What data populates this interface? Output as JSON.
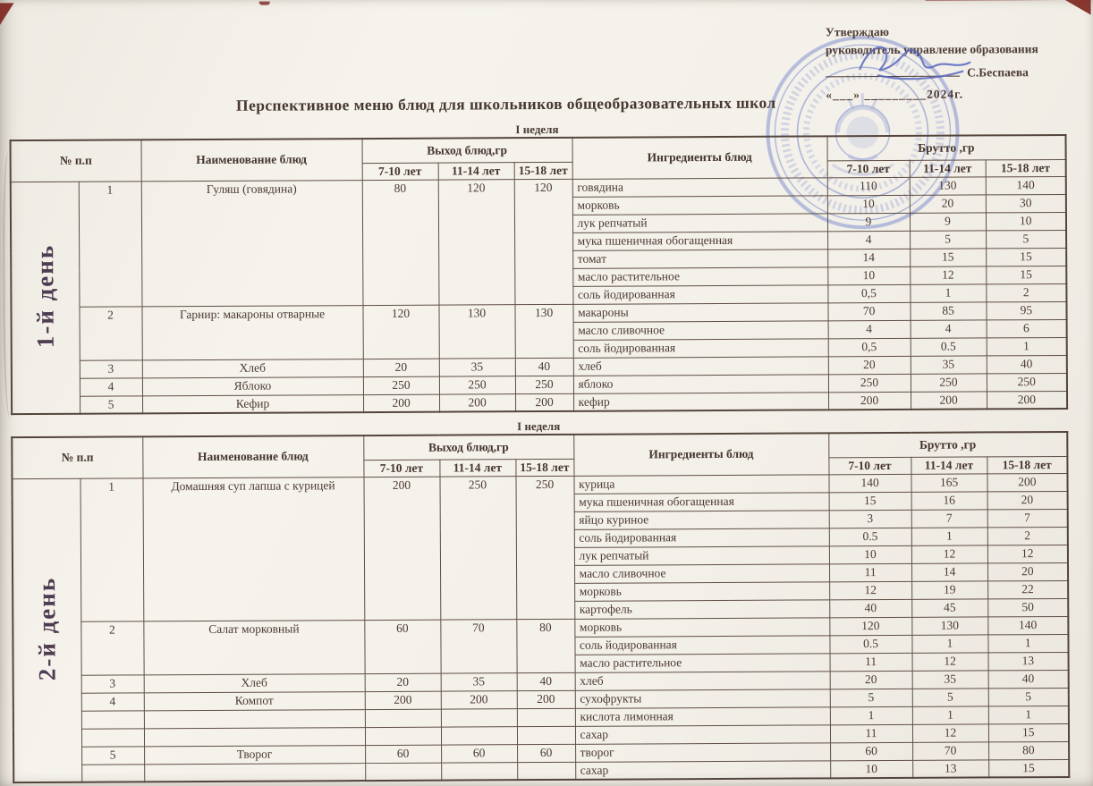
{
  "title": "Перспективное меню блюд для школьников общеобразовательных школ",
  "approval": {
    "line1": "Утверждаю",
    "line2": "руководитель управление образования",
    "signatory": "С.Беспаева",
    "date_line": "«___» _________2024г."
  },
  "decorations": {
    "stamp_icon": "official-round-stamp",
    "signature_icon": "handwritten-signature",
    "stamp_color": "#6d80c9",
    "signature_color": "#5a68bd",
    "paper_color": "#f3f0e9",
    "ink_color": "#4a3a33",
    "border_color": "#5e4e44",
    "day_label_color": "#4e3c50",
    "artifact_red": "#7c231c"
  },
  "tables": [
    {
      "week_label": "I неделя",
      "day_label": "1-й день",
      "columns": {
        "num": "№ п.п",
        "dish": "Наименование блюд",
        "output_group": "Выход блюд,гр",
        "ingredient": "Ингредиенты  блюд",
        "brutto_group": "Брутто ,гр",
        "ages": [
          "7-10 лет",
          "11-14 лет",
          "15-18 лет"
        ]
      },
      "dishes": [
        {
          "num": "1",
          "name": "Гуляш (говядина)",
          "merged": true,
          "output": [
            "80",
            "120",
            "120"
          ],
          "ingredients": [
            {
              "name": "говядина",
              "brutto": [
                "110",
                "130",
                "140"
              ]
            },
            {
              "name": "морковь",
              "brutto": [
                "10",
                "20",
                "30"
              ]
            },
            {
              "name": "лук репчатый",
              "brutto": [
                "9",
                "9",
                "10"
              ]
            },
            {
              "name": "мука пшеничная обогащенная",
              "brutto": [
                "4",
                "5",
                "5"
              ]
            },
            {
              "name": "томат",
              "brutto": [
                "14",
                "15",
                "15"
              ]
            },
            {
              "name": "масло растительное",
              "brutto": [
                "10",
                "12",
                "15"
              ]
            },
            {
              "name": "соль йодированная",
              "brutto": [
                "0,5",
                "1",
                "2"
              ]
            }
          ]
        },
        {
          "num": "2",
          "name": "Гарнир: макароны отварные",
          "merged": true,
          "output": [
            "120",
            "130",
            "130"
          ],
          "ingredients": [
            {
              "name": "макароны",
              "brutto": [
                "70",
                "85",
                "95"
              ]
            },
            {
              "name": "масло сливочное",
              "brutto": [
                "4",
                "4",
                "6"
              ]
            },
            {
              "name": "соль йодированная",
              "brutto": [
                "0,5",
                "0.5",
                "1"
              ]
            }
          ]
        },
        {
          "num": "3",
          "name": "Хлеб",
          "merged": true,
          "output": [
            "20",
            "35",
            "40"
          ],
          "ingredients": [
            {
              "name": "хлеб",
              "brutto": [
                "20",
                "35",
                "40"
              ]
            }
          ]
        },
        {
          "num": "4",
          "name": "Яблоко",
          "merged": true,
          "output": [
            "250",
            "250",
            "250"
          ],
          "ingredients": [
            {
              "name": "яблоко",
              "brutto": [
                "250",
                "250",
                "250"
              ]
            }
          ]
        },
        {
          "num": "5",
          "name": "Кефир",
          "merged": true,
          "output": [
            "200",
            "200",
            "200"
          ],
          "ingredients": [
            {
              "name": "кефир",
              "brutto": [
                "200",
                "200",
                "200"
              ]
            }
          ]
        }
      ]
    },
    {
      "week_label": "I неделя",
      "day_label": "2-й день",
      "columns": {
        "num": "№ п.п",
        "dish": "Наименование блюд",
        "output_group": "Выход блюд,гр",
        "ingredient": "Ингредиенты  блюд",
        "brutto_group": "Брутто ,гр",
        "ages": [
          "7-10 лет",
          "11-14 лет",
          "15-18 лет"
        ]
      },
      "dishes": [
        {
          "num": "1",
          "name": "Домашняя суп лапша с курицей",
          "merged": true,
          "output": [
            "200",
            "250",
            "250"
          ],
          "ingredients": [
            {
              "name": "курица",
              "brutto": [
                "140",
                "165",
                "200"
              ]
            },
            {
              "name": "мука пшеничная обогащенная",
              "brutto": [
                "15",
                "16",
                "20"
              ]
            },
            {
              "name": "яйцо куриное",
              "brutto": [
                "3",
                "7",
                "7"
              ]
            },
            {
              "name": "соль йодированная",
              "brutto": [
                "0.5",
                "1",
                "2"
              ]
            },
            {
              "name": "лук репчатый",
              "brutto": [
                "10",
                "12",
                "12"
              ]
            },
            {
              "name": "масло сливочное",
              "brutto": [
                "11",
                "14",
                "20"
              ]
            },
            {
              "name": "морковь",
              "brutto": [
                "12",
                "19",
                "22"
              ]
            },
            {
              "name": "картофель",
              "brutto": [
                "40",
                "45",
                "50"
              ]
            }
          ]
        },
        {
          "num": "2",
          "name": "Салат морковный",
          "merged": true,
          "output": [
            "60",
            "70",
            "80"
          ],
          "ingredients": [
            {
              "name": "морковь",
              "brutto": [
                "120",
                "130",
                "140"
              ]
            },
            {
              "name": "соль йодированная",
              "brutto": [
                "0.5",
                "1",
                "1"
              ]
            },
            {
              "name": "масло растительное",
              "brutto": [
                "11",
                "12",
                "13"
              ]
            }
          ]
        },
        {
          "num": "3",
          "name": "Хлеб",
          "merged": true,
          "output": [
            "20",
            "35",
            "40"
          ],
          "ingredients": [
            {
              "name": "хлеб",
              "brutto": [
                "20",
                "35",
                "40"
              ]
            }
          ]
        },
        {
          "num": "4",
          "name": "Компот",
          "merged": false,
          "output": [
            "200",
            "200",
            "200"
          ],
          "ingredients": [
            {
              "name": "сухофрукты",
              "brutto": [
                "5",
                "5",
                "5"
              ]
            },
            {
              "name": "кислота лимонная",
              "brutto": [
                "1",
                "1",
                "1"
              ]
            },
            {
              "name": "сахар",
              "brutto": [
                "11",
                "12",
                "15"
              ]
            }
          ]
        },
        {
          "num": "5",
          "name": "Творог",
          "merged": false,
          "output": [
            "60",
            "60",
            "60"
          ],
          "ingredients": [
            {
              "name": "творог",
              "brutto": [
                "60",
                "70",
                "80"
              ]
            },
            {
              "name": "сахар",
              "brutto": [
                "10",
                "13",
                "15"
              ]
            }
          ]
        }
      ]
    }
  ]
}
